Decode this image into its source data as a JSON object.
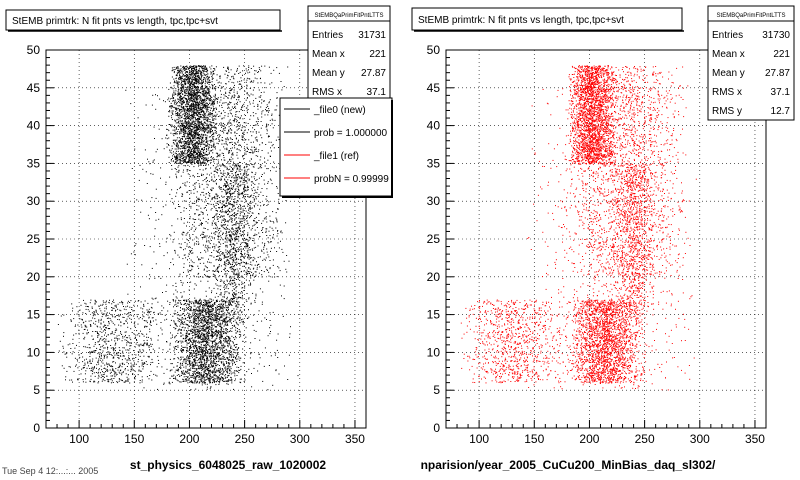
{
  "left_panel": {
    "title": "StEMB primtrk: N fit pnts vs length, tpc,tpc+svt",
    "xlabel": "st_physics_6048025_raw_1020002",
    "stats": {
      "name": "StEMBQaPrimFitPntLTTS",
      "rows": [
        {
          "label": "Entries",
          "value": "31731"
        },
        {
          "label": "Mean x",
          "value": "221"
        },
        {
          "label": "Mean y",
          "value": "27.87"
        },
        {
          "label": "RMS x",
          "value": "37.1"
        }
      ]
    },
    "legend": [
      {
        "label": "_file0 (new)",
        "color": "#000000"
      },
      {
        "label": "prob = 1.000000",
        "color": "#000000"
      },
      {
        "label": "_file1 (ref)",
        "color": "#ff0000"
      },
      {
        "label": "probN = 0.99999",
        "color": "#ff0000"
      }
    ]
  },
  "right_panel": {
    "title": "StEMB primtrk: N fit pnts vs length, tpc,tpc+svt",
    "xlabel": "nparision/year_2005_CuCu200_MinBias_daq_sl302/",
    "stats": {
      "name": "StEMBQaPrimFitPntLTTS",
      "rows": [
        {
          "label": "Entries",
          "value": "31730"
        },
        {
          "label": "Mean x",
          "value": "221"
        },
        {
          "label": "Mean y",
          "value": "27.87"
        },
        {
          "label": "RMS x",
          "value": "37.1"
        },
        {
          "label": "RMS y",
          "value": "12.7"
        }
      ]
    }
  },
  "footer_stamp": "Tue Sep  4 12:...:... 2005",
  "chart_data": [
    {
      "type": "scatter",
      "title": "StEMB primtrk: N fit pnts vs length, tpc,tpc+svt",
      "xlabel": "st_physics_6048025_raw_1020002",
      "ylabel": "",
      "xlim": [
        70,
        360
      ],
      "ylim": [
        0,
        50
      ],
      "xticks": [
        100,
        150,
        200,
        250,
        300,
        350
      ],
      "yticks": [
        0,
        5,
        10,
        15,
        20,
        25,
        30,
        35,
        40,
        45,
        50
      ],
      "grid": true,
      "color": "#000000",
      "point_count": 31731,
      "density_regions": [
        {
          "x_range": [
            180,
            225
          ],
          "y_range": [
            35,
            48
          ],
          "weight": 0.26
        },
        {
          "x_range": [
            180,
            290
          ],
          "y_range": [
            20,
            48
          ],
          "weight": 0.18
        },
        {
          "x_range": [
            180,
            250
          ],
          "y_range": [
            6,
            17
          ],
          "weight": 0.24
        },
        {
          "x_range": [
            80,
            180
          ],
          "y_range": [
            6,
            17
          ],
          "weight": 0.1
        },
        {
          "x_range": [
            140,
            300
          ],
          "y_range": [
            5,
            45
          ],
          "weight": 0.14
        },
        {
          "x_range": [
            220,
            260
          ],
          "y_range": [
            16,
            35
          ],
          "weight": 0.08
        }
      ]
    },
    {
      "type": "scatter",
      "title": "StEMB primtrk: N fit pnts vs length, tpc,tpc+svt",
      "xlabel": "nparision/year_2005_CuCu200_MinBias_daq_sl302/",
      "ylabel": "",
      "xlim": [
        70,
        360
      ],
      "ylim": [
        0,
        50
      ],
      "xticks": [
        100,
        150,
        200,
        250,
        300,
        350
      ],
      "yticks": [
        0,
        5,
        10,
        15,
        20,
        25,
        30,
        35,
        40,
        45,
        50
      ],
      "grid": true,
      "color": "#ff0000",
      "point_count": 31730,
      "density_regions": [
        {
          "x_range": [
            180,
            225
          ],
          "y_range": [
            35,
            48
          ],
          "weight": 0.26
        },
        {
          "x_range": [
            180,
            290
          ],
          "y_range": [
            20,
            48
          ],
          "weight": 0.18
        },
        {
          "x_range": [
            180,
            250
          ],
          "y_range": [
            6,
            17
          ],
          "weight": 0.24
        },
        {
          "x_range": [
            80,
            180
          ],
          "y_range": [
            6,
            17
          ],
          "weight": 0.1
        },
        {
          "x_range": [
            140,
            300
          ],
          "y_range": [
            5,
            45
          ],
          "weight": 0.14
        },
        {
          "x_range": [
            220,
            260
          ],
          "y_range": [
            16,
            35
          ],
          "weight": 0.08
        }
      ]
    }
  ]
}
